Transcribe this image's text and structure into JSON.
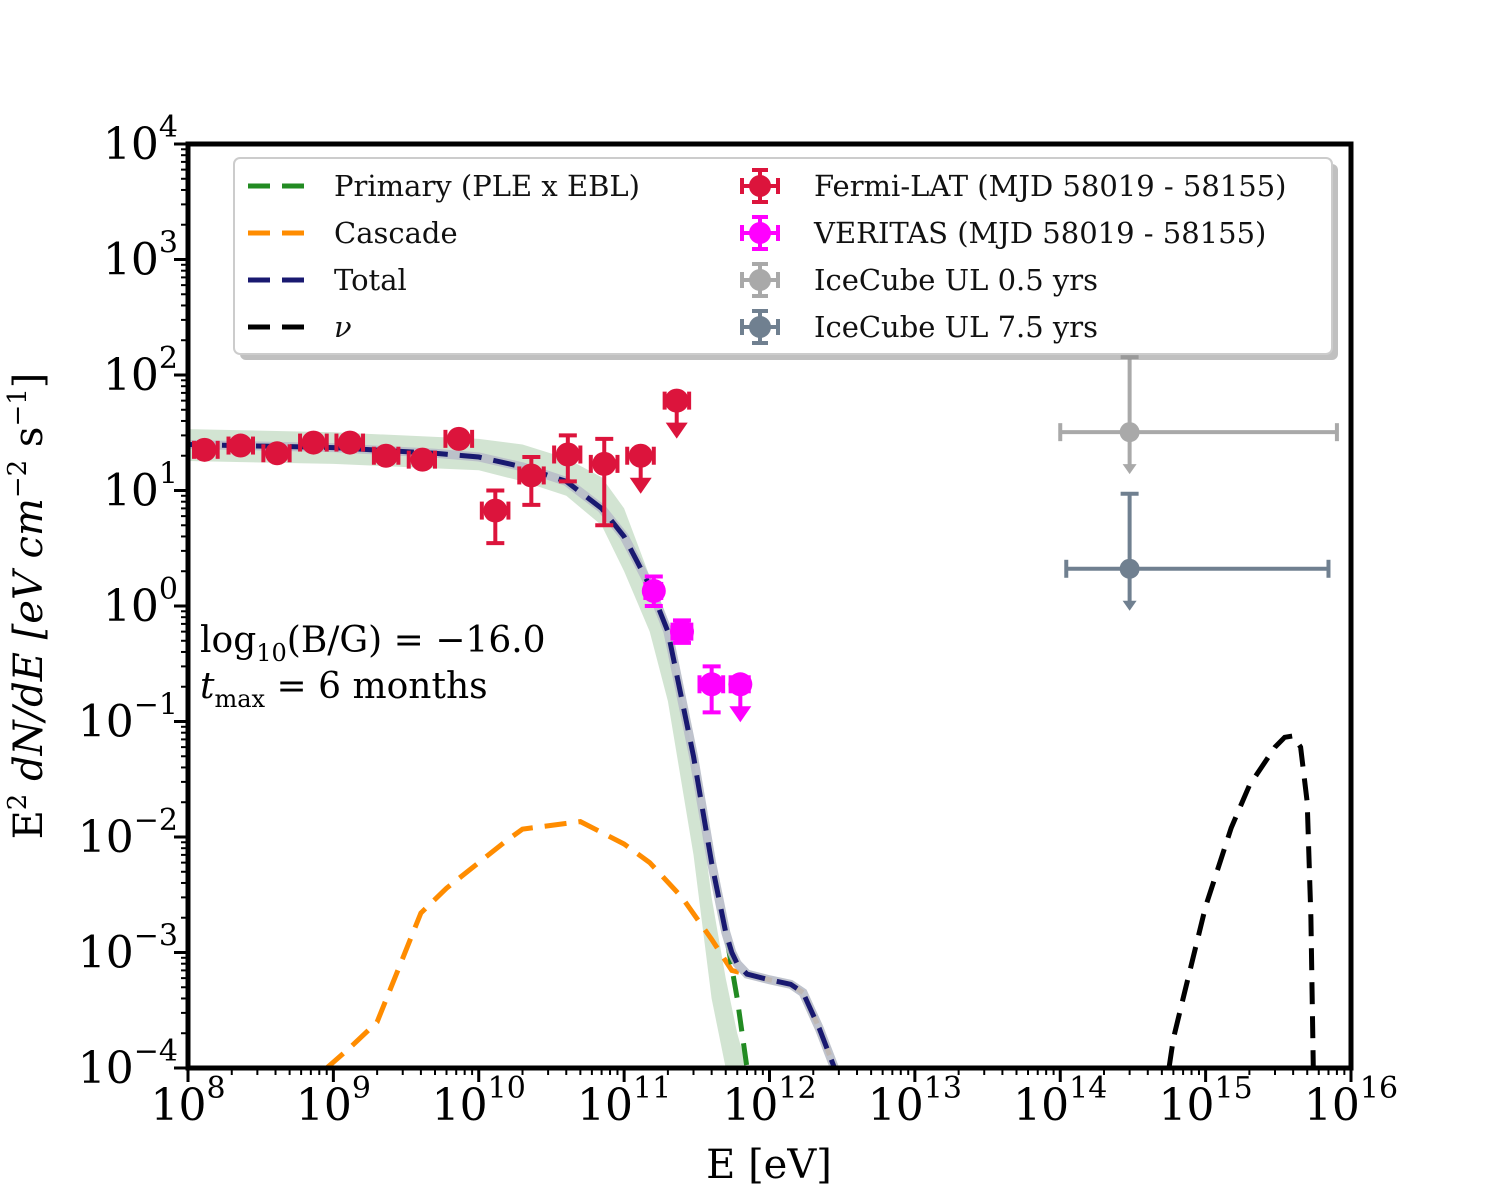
{
  "chart_data": {
    "type": "scatter",
    "xlabel": "E [eV]",
    "ylabel_parts": [
      "E",
      "2",
      " dN/dE [eV cm",
      "−2",
      " s",
      "−1",
      "]"
    ],
    "xscale": "log",
    "yscale": "log",
    "xlim": [
      100000000.0,
      1e+16
    ],
    "ylim": [
      0.0001,
      10000
    ],
    "x_ticks": [
      {
        "base": "10",
        "exp": "8"
      },
      {
        "base": "10",
        "exp": "9"
      },
      {
        "base": "10",
        "exp": "10"
      },
      {
        "base": "10",
        "exp": "11"
      },
      {
        "base": "10",
        "exp": "12"
      },
      {
        "base": "10",
        "exp": "13"
      },
      {
        "base": "10",
        "exp": "14"
      },
      {
        "base": "10",
        "exp": "15"
      },
      {
        "base": "10",
        "exp": "16"
      }
    ],
    "y_ticks": [
      {
        "base": "10",
        "exp": "−4"
      },
      {
        "base": "10",
        "exp": "−3"
      },
      {
        "base": "10",
        "exp": "−2"
      },
      {
        "base": "10",
        "exp": "−1"
      },
      {
        "base": "10",
        "exp": "0"
      },
      {
        "base": "10",
        "exp": "1"
      },
      {
        "base": "10",
        "exp": "2"
      },
      {
        "base": "10",
        "exp": "3"
      },
      {
        "base": "10",
        "exp": "4"
      }
    ],
    "annotation": {
      "line1_prefix": "log",
      "line1_sub": "10",
      "line1_rest": "(B/G) = −16.0",
      "line2_prefix": "t",
      "line2_sub": "max",
      "line2_rest": " = 6 months"
    },
    "legend": {
      "position": "upper-center",
      "entries": [
        {
          "label": "Primary (PLE x EBL)",
          "kind": "line",
          "color": "#228b22"
        },
        {
          "label": "Cascade",
          "kind": "line",
          "color": "#ff8c00"
        },
        {
          "label": "Total",
          "kind": "line",
          "color": "#191970"
        },
        {
          "label": "ν",
          "kind": "line",
          "color": "#000000"
        },
        {
          "label": "Fermi-LAT (MJD 58019 - 58155)",
          "kind": "marker",
          "color": "#dc143c"
        },
        {
          "label": "VERITAS (MJD 58019 - 58155)",
          "kind": "marker",
          "color": "#ff00ff"
        },
        {
          "label": "IceCube UL 0.5 yrs",
          "kind": "marker",
          "color": "#a9a9a9"
        },
        {
          "label": "IceCube UL 7.5 yrs",
          "kind": "marker",
          "color": "#708090"
        }
      ]
    },
    "band": {
      "name": "Primary uncertainty band",
      "color": "#8fbc8f",
      "x": [
        100000000.0,
        1000000000.0,
        10000000000.0,
        20000000000.0,
        40000000000.0,
        70000000000.0,
        100000000000.0,
        150000000000.0,
        200000000000.0,
        300000000000.0,
        400000000000.0,
        500000000000.0,
        600000000000.0,
        700000000000.0
      ],
      "upper": [
        34,
        32,
        28,
        25,
        19,
        13,
        7,
        1.8,
        0.6,
        0.05,
        0.003,
        0.0006,
        0.0002,
        0.0001
      ],
      "lower": [
        18,
        17,
        15,
        12,
        9,
        5,
        2,
        0.6,
        0.15,
        0.007,
        0.0004,
        0.0001,
        0.0001,
        0.0001
      ]
    },
    "series": [
      {
        "name": "Cascade",
        "color": "#ff8c00",
        "x": [
          900000000.0,
          1300000000.0,
          2000000000.0,
          4000000000.0,
          6000000000.0,
          10000000000.0,
          15000000000.0,
          20000000000.0,
          50000000000.0,
          100000000000.0,
          150000000000.0,
          250000000000.0,
          400000000000.0,
          550000000000.0,
          700000000000.0,
          1000000000000.0,
          1400000000000.0,
          1700000000000.0,
          2200000000000.0,
          2800000000000.0
        ],
        "y": [
          0.0001,
          0.00015,
          0.00025,
          0.0022,
          0.0036,
          0.006,
          0.009,
          0.0117,
          0.0136,
          0.0087,
          0.006,
          0.003,
          0.0013,
          0.0007,
          0.00065,
          0.00058,
          0.00053,
          0.00045,
          0.00022,
          0.0001
        ]
      },
      {
        "name": "Primary (PLE x EBL)",
        "color": "#228b22",
        "x": [
          100000000.0,
          1000000000.0,
          5000000000.0,
          10000000000.0,
          20000000000.0,
          40000000000.0,
          70000000000.0,
          100000000000.0,
          150000000000.0,
          200000000000.0,
          300000000000.0,
          400000000000.0,
          500000000000.0,
          600000000000.0,
          700000000000.0
        ],
        "y": [
          25,
          23.5,
          21,
          19.5,
          16,
          12,
          7,
          4,
          1.5,
          0.6,
          0.05,
          0.006,
          0.0015,
          0.0004,
          0.0001
        ]
      },
      {
        "name": "Total",
        "color": "#191970",
        "x": [
          100000000.0,
          1000000000.0,
          5000000000.0,
          10000000000.0,
          20000000000.0,
          40000000000.0,
          70000000000.0,
          100000000000.0,
          150000000000.0,
          200000000000.0,
          300000000000.0,
          400000000000.0,
          500000000000.0,
          550000000000.0,
          600000000000.0,
          700000000000.0,
          1000000000000.0,
          1400000000000.0,
          1700000000000.0,
          2200000000000.0,
          2800000000000.0
        ],
        "y": [
          25,
          23.5,
          21,
          19.5,
          16,
          12,
          7,
          4,
          1.5,
          0.6,
          0.05,
          0.006,
          0.0015,
          0.001,
          0.0008,
          0.00065,
          0.00058,
          0.00053,
          0.00045,
          0.00022,
          0.0001
        ]
      },
      {
        "name": "ν",
        "color": "#000000",
        "x": [
          560000000000000.0,
          600000000000000.0,
          700000000000000.0,
          1000000000000000.0,
          1500000000000000.0,
          2000000000000000.0,
          3000000000000000.0,
          3500000000000000.0,
          4000000000000000.0,
          4500000000000000.0,
          5000000000000000.0,
          5300000000000000.0,
          5500000000000000.0
        ],
        "y": [
          0.0001,
          0.00018,
          0.0004,
          0.0025,
          0.012,
          0.028,
          0.06,
          0.073,
          0.075,
          0.06,
          0.02,
          0.002,
          0.0001
        ]
      }
    ],
    "points": [
      {
        "name": "Fermi-LAT (MJD 58019 - 58155)",
        "color": "#dc143c",
        "data": [
          {
            "x": 130000000.0,
            "y": 22.5,
            "xlo": 110000000.0,
            "xhi": 160000000.0,
            "ylo": 20,
            "yhi": 25,
            "ul": false
          },
          {
            "x": 230000000.0,
            "y": 24.5,
            "xlo": 190000000.0,
            "xhi": 280000000.0,
            "ylo": 22,
            "yhi": 27,
            "ul": false
          },
          {
            "x": 410000000.0,
            "y": 21,
            "xlo": 330000000.0,
            "xhi": 500000000.0,
            "ylo": 19,
            "yhi": 23,
            "ul": false
          },
          {
            "x": 730000000.0,
            "y": 26,
            "xlo": 590000000.0,
            "xhi": 900000000.0,
            "ylo": 24,
            "yhi": 28,
            "ul": false
          },
          {
            "x": 1300000000.0,
            "y": 26,
            "xlo": 1050000000.0,
            "xhi": 1600000000.0,
            "ylo": 24,
            "yhi": 28,
            "ul": false
          },
          {
            "x": 2300000000.0,
            "y": 20,
            "xlo": 1900000000.0,
            "xhi": 2800000000.0,
            "ylo": 18.5,
            "yhi": 21.5,
            "ul": false
          },
          {
            "x": 4100000000.0,
            "y": 18.5,
            "xlo": 3300000000.0,
            "xhi": 5000000000.0,
            "ylo": 16.5,
            "yhi": 20.5,
            "ul": false
          },
          {
            "x": 7300000000.0,
            "y": 28,
            "xlo": 5900000000.0,
            "xhi": 9000000000.0,
            "ylo": 25,
            "yhi": 31,
            "ul": false
          },
          {
            "x": 13000000000.0,
            "y": 6.7,
            "xlo": 10500000000.0,
            "xhi": 16000000000.0,
            "ylo": 3.5,
            "yhi": 10,
            "ul": false
          },
          {
            "x": 23000000000.0,
            "y": 13.5,
            "xlo": 19000000000.0,
            "xhi": 28000000000.0,
            "ylo": 7.5,
            "yhi": 19.5,
            "ul": false
          },
          {
            "x": 41000000000.0,
            "y": 20.5,
            "xlo": 33000000000.0,
            "xhi": 50000000000.0,
            "ylo": 12,
            "yhi": 30,
            "ul": false
          },
          {
            "x": 73000000000.0,
            "y": 17,
            "xlo": 59000000000.0,
            "xhi": 90000000000.0,
            "ylo": 5,
            "yhi": 28,
            "ul": false
          },
          {
            "x": 130000000000.0,
            "y": 20,
            "xlo": 105000000000.0,
            "xhi": 160000000000.0,
            "ylo": 0,
            "yhi": 0,
            "ul": true
          },
          {
            "x": 230000000000.0,
            "y": 60,
            "xlo": 190000000000.0,
            "xhi": 280000000000.0,
            "ylo": 0,
            "yhi": 0,
            "ul": true
          }
        ]
      },
      {
        "name": "VERITAS (MJD 58019 - 58155)",
        "color": "#ff00ff",
        "data": [
          {
            "x": 160000000000.0,
            "y": 1.35,
            "xlo": 140000000000.0,
            "xhi": 180000000000.0,
            "ylo": 1.0,
            "yhi": 1.8,
            "ul": false
          },
          {
            "x": 250000000000.0,
            "y": 0.6,
            "xlo": 215000000000.0,
            "xhi": 290000000000.0,
            "ylo": 0.48,
            "yhi": 0.75,
            "ul": false
          },
          {
            "x": 400000000000.0,
            "y": 0.21,
            "xlo": 330000000000.0,
            "xhi": 480000000000.0,
            "ylo": 0.12,
            "yhi": 0.3,
            "ul": false
          },
          {
            "x": 630000000000.0,
            "y": 0.21,
            "xlo": 540000000000.0,
            "xhi": 720000000000.0,
            "ylo": 0,
            "yhi": 0,
            "ul": true
          }
        ]
      },
      {
        "name": "IceCube UL 0.5 yrs",
        "color": "#a9a9a9",
        "data": [
          {
            "x": 300000000000000.0,
            "y": 32,
            "xlo": 100000000000000.0,
            "xhi": 8000000000000000.0,
            "ylo": 0,
            "yhi": 0,
            "ul": true
          }
        ]
      },
      {
        "name": "IceCube UL 7.5 yrs",
        "color": "#708090",
        "data": [
          {
            "x": 300000000000000.0,
            "y": 2.1,
            "xlo": 110000000000000.0,
            "xhi": 7000000000000000.0,
            "ylo": 0,
            "yhi": 0,
            "ul": true
          }
        ]
      }
    ]
  }
}
